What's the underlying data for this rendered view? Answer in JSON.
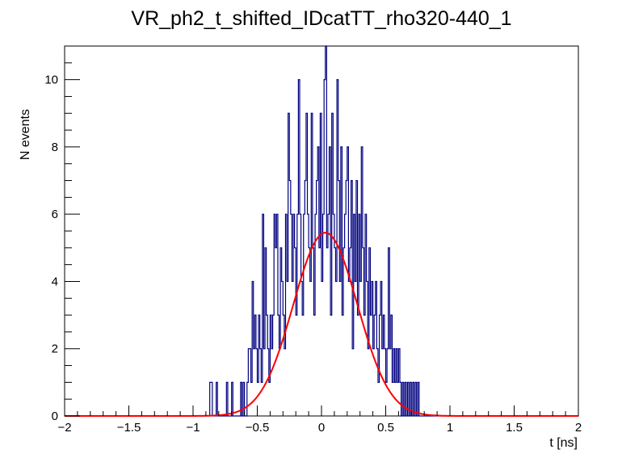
{
  "chart_data": {
    "type": "histogram",
    "title": "VR_ph2_t_shifted_IDcatTT_rho320-440_1",
    "xlabel": "t [ns]",
    "ylabel": "N events",
    "xlim": [
      -2,
      2
    ],
    "ylim": [
      0,
      11
    ],
    "x_ticks": [
      -2,
      -1.5,
      -1,
      -0.5,
      0,
      0.5,
      1,
      1.5,
      2
    ],
    "x_tick_labels": [
      "−2",
      "−1.5",
      "−1",
      "−0.5",
      "0",
      "0.5",
      "1",
      "1.5",
      "2"
    ],
    "y_ticks": [
      0,
      2,
      4,
      6,
      8,
      10
    ],
    "y_tick_labels": [
      "0",
      "2",
      "4",
      "6",
      "8",
      "10"
    ],
    "histogram": {
      "name": "data",
      "color": "#000080",
      "bin_width": 0.0125,
      "points": [
        [
          -0.88,
          0
        ],
        [
          -0.87,
          1
        ],
        [
          -0.86,
          1
        ],
        [
          -0.85,
          0
        ],
        [
          -0.83,
          0
        ],
        [
          -0.82,
          1
        ],
        [
          -0.81,
          0
        ],
        [
          -0.75,
          0
        ],
        [
          -0.74,
          1
        ],
        [
          -0.73,
          0
        ],
        [
          -0.71,
          0
        ],
        [
          -0.7,
          1
        ],
        [
          -0.69,
          0
        ],
        [
          -0.64,
          0
        ],
        [
          -0.63,
          1
        ],
        [
          -0.62,
          0
        ],
        [
          -0.61,
          1
        ],
        [
          -0.6,
          0
        ],
        [
          -0.58,
          1
        ],
        [
          -0.57,
          2
        ],
        [
          -0.56,
          2
        ],
        [
          -0.55,
          1
        ],
        [
          -0.54,
          4
        ],
        [
          -0.53,
          2
        ],
        [
          -0.52,
          3
        ],
        [
          -0.51,
          2
        ],
        [
          -0.5,
          1
        ],
        [
          -0.49,
          3
        ],
        [
          -0.48,
          2
        ],
        [
          -0.47,
          1
        ],
        [
          -0.46,
          6
        ],
        [
          -0.45,
          2
        ],
        [
          -0.44,
          5
        ],
        [
          -0.43,
          3
        ],
        [
          -0.42,
          2
        ],
        [
          -0.41,
          1
        ],
        [
          -0.4,
          3
        ],
        [
          -0.39,
          2
        ],
        [
          -0.38,
          3
        ],
        [
          -0.37,
          6
        ],
        [
          -0.36,
          5
        ],
        [
          -0.35,
          6
        ],
        [
          -0.34,
          3
        ],
        [
          -0.33,
          2
        ],
        [
          -0.32,
          5
        ],
        [
          -0.31,
          4
        ],
        [
          -0.3,
          3
        ],
        [
          -0.29,
          2
        ],
        [
          -0.28,
          6
        ],
        [
          -0.27,
          4
        ],
        [
          -0.26,
          9
        ],
        [
          -0.25,
          7
        ],
        [
          -0.24,
          6
        ],
        [
          -0.23,
          4
        ],
        [
          -0.22,
          6
        ],
        [
          -0.21,
          5
        ],
        [
          -0.2,
          3
        ],
        [
          -0.19,
          6
        ],
        [
          -0.18,
          10
        ],
        [
          -0.17,
          6
        ],
        [
          -0.16,
          4
        ],
        [
          -0.15,
          3
        ],
        [
          -0.14,
          6
        ],
        [
          -0.13,
          7
        ],
        [
          -0.12,
          9
        ],
        [
          -0.11,
          6
        ],
        [
          -0.1,
          5
        ],
        [
          -0.09,
          4
        ],
        [
          -0.08,
          9
        ],
        [
          -0.07,
          5
        ],
        [
          -0.06,
          3
        ],
        [
          -0.05,
          6
        ],
        [
          -0.04,
          7
        ],
        [
          -0.03,
          8
        ],
        [
          -0.02,
          5
        ],
        [
          -0.01,
          9
        ],
        [
          0.0,
          4
        ],
        [
          0.01,
          6
        ],
        [
          0.02,
          10
        ],
        [
          0.03,
          11
        ],
        [
          0.04,
          5
        ],
        [
          0.05,
          6
        ],
        [
          0.06,
          8
        ],
        [
          0.07,
          3
        ],
        [
          0.08,
          9
        ],
        [
          0.09,
          6
        ],
        [
          0.1,
          5
        ],
        [
          0.11,
          4
        ],
        [
          0.12,
          10
        ],
        [
          0.13,
          7
        ],
        [
          0.14,
          4
        ],
        [
          0.15,
          8
        ],
        [
          0.16,
          3
        ],
        [
          0.17,
          5
        ],
        [
          0.18,
          6
        ],
        [
          0.19,
          7
        ],
        [
          0.2,
          8
        ],
        [
          0.21,
          4
        ],
        [
          0.22,
          5
        ],
        [
          0.23,
          7
        ],
        [
          0.24,
          2
        ],
        [
          0.25,
          6
        ],
        [
          0.26,
          4
        ],
        [
          0.27,
          7
        ],
        [
          0.28,
          3
        ],
        [
          0.29,
          6
        ],
        [
          0.3,
          4
        ],
        [
          0.31,
          8
        ],
        [
          0.32,
          5
        ],
        [
          0.33,
          3
        ],
        [
          0.34,
          6
        ],
        [
          0.35,
          4
        ],
        [
          0.36,
          2
        ],
        [
          0.37,
          5
        ],
        [
          0.38,
          3
        ],
        [
          0.39,
          4
        ],
        [
          0.4,
          2
        ],
        [
          0.41,
          3
        ],
        [
          0.42,
          4
        ],
        [
          0.43,
          2
        ],
        [
          0.44,
          1
        ],
        [
          0.45,
          3
        ],
        [
          0.46,
          4
        ],
        [
          0.47,
          2
        ],
        [
          0.48,
          3
        ],
        [
          0.49,
          2
        ],
        [
          0.5,
          1
        ],
        [
          0.51,
          2
        ],
        [
          0.52,
          5
        ],
        [
          0.53,
          2
        ],
        [
          0.54,
          3
        ],
        [
          0.55,
          1
        ],
        [
          0.56,
          2
        ],
        [
          0.57,
          1
        ],
        [
          0.58,
          2
        ],
        [
          0.59,
          1
        ],
        [
          0.6,
          2
        ],
        [
          0.61,
          1
        ],
        [
          0.62,
          0
        ],
        [
          0.63,
          1
        ],
        [
          0.64,
          0
        ],
        [
          0.65,
          1
        ],
        [
          0.66,
          0
        ],
        [
          0.67,
          1
        ],
        [
          0.68,
          0
        ],
        [
          0.69,
          1
        ],
        [
          0.7,
          0
        ],
        [
          0.71,
          1
        ],
        [
          0.72,
          0
        ],
        [
          0.73,
          1
        ],
        [
          0.74,
          0
        ],
        [
          0.75,
          1
        ],
        [
          0.76,
          0
        ],
        [
          0.8,
          0
        ]
      ]
    },
    "fit": {
      "name": "gaussian fit",
      "color": "#ff0000",
      "function": "gaus",
      "amplitude": 5.45,
      "mean": 0.03,
      "sigma": 0.25
    }
  }
}
